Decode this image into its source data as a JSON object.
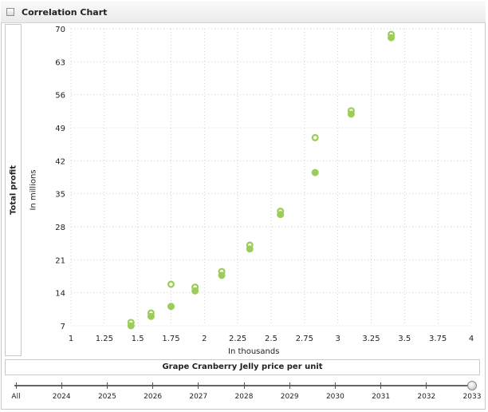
{
  "header": {
    "title": "Correlation Chart"
  },
  "y_axis": {
    "title": "Total profit",
    "unit": "In millions"
  },
  "x_axis": {
    "title": "Grape Cranberry Jelly price per unit",
    "unit": "In thousands"
  },
  "timeline": {
    "labels": [
      "All",
      "2024",
      "2025",
      "2026",
      "2027",
      "2028",
      "2029",
      "2030",
      "2031",
      "2032",
      "2033"
    ],
    "selected": "2033"
  },
  "colors": {
    "point_fill": "#9ccc5a",
    "point_highlight": "#ffffff",
    "grid": "#cfcfcf"
  },
  "chart_data": {
    "type": "scatter",
    "xlim": [
      1,
      4
    ],
    "ylim": [
      7,
      70
    ],
    "x_ticks": [
      "1",
      "1.25",
      "1.5",
      "1.75",
      "2",
      "2.25",
      "2.5",
      "2.75",
      "3",
      "3.25",
      "3.5",
      "3.75",
      "4"
    ],
    "y_ticks": [
      "7",
      "14",
      "21",
      "28",
      "35",
      "42",
      "49",
      "56",
      "63",
      "70"
    ],
    "grid": true,
    "points": [
      {
        "x": 1.45,
        "y": 7.7,
        "hollow": true
      },
      {
        "x": 1.45,
        "y": 7.0,
        "hollow": false
      },
      {
        "x": 1.6,
        "y": 9.7,
        "hollow": true
      },
      {
        "x": 1.6,
        "y": 9.0,
        "hollow": false
      },
      {
        "x": 1.75,
        "y": 11.1,
        "hollow": false
      },
      {
        "x": 1.75,
        "y": 15.8,
        "hollow": true
      },
      {
        "x": 1.93,
        "y": 15.2,
        "hollow": true
      },
      {
        "x": 1.93,
        "y": 14.4,
        "hollow": false
      },
      {
        "x": 2.13,
        "y": 18.5,
        "hollow": true
      },
      {
        "x": 2.13,
        "y": 17.7,
        "hollow": false
      },
      {
        "x": 2.34,
        "y": 24.1,
        "hollow": true
      },
      {
        "x": 2.34,
        "y": 23.3,
        "hollow": false
      },
      {
        "x": 2.57,
        "y": 31.3,
        "hollow": true
      },
      {
        "x": 2.57,
        "y": 30.6,
        "hollow": false
      },
      {
        "x": 2.83,
        "y": 46.9,
        "hollow": true
      },
      {
        "x": 2.83,
        "y": 39.5,
        "hollow": false
      },
      {
        "x": 3.1,
        "y": 52.6,
        "hollow": true
      },
      {
        "x": 3.1,
        "y": 51.9,
        "hollow": false
      },
      {
        "x": 3.4,
        "y": 68.8,
        "hollow": true
      },
      {
        "x": 3.4,
        "y": 68.1,
        "hollow": false
      }
    ]
  }
}
